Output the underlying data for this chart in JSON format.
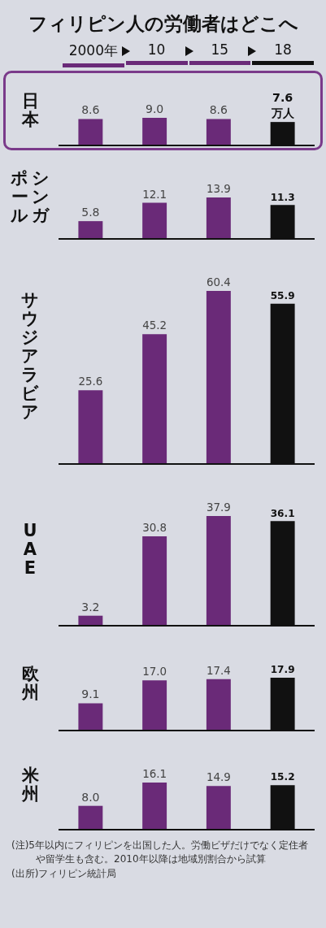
{
  "chart_data": [
    {
      "type": "bar",
      "title": "フィリピン人の労働者はどこへ",
      "ylabel": "日本",
      "categories": [
        "2000年",
        "10",
        "15",
        "18"
      ],
      "values": [
        8.6,
        9.0,
        8.6,
        7.6
      ],
      "colors": [
        "#6a2a78",
        "#6a2a78",
        "#6a2a78",
        "#111111"
      ],
      "value_labels": [
        "8.6",
        "9.0",
        "8.6",
        "7.6 万人"
      ],
      "tick_labels": false
    },
    {
      "type": "bar",
      "ylabel": "シンガポール",
      "categories": [
        null,
        null,
        null,
        null
      ],
      "values": [
        5.8,
        12.1,
        13.9,
        11.3
      ],
      "colors": [
        "#6a2a78",
        "#6a2a78",
        "#6a2a78",
        "#111111"
      ],
      "value_labels": [
        "5.8",
        "12.1",
        "13.9",
        "11.3"
      ],
      "tick_labels": false
    },
    {
      "type": "bar",
      "ylabel": "サウジアラビア",
      "categories": [
        null,
        null,
        null,
        null
      ],
      "values": [
        25.6,
        45.2,
        60.4,
        55.9
      ],
      "colors": [
        "#6a2a78",
        "#6a2a78",
        "#6a2a78",
        "#111111"
      ],
      "value_labels": [
        "25.6",
        "45.2",
        "60.4",
        "55.9"
      ],
      "tick_labels": false
    },
    {
      "type": "bar",
      "ylabel": "UAE",
      "categories": [
        null,
        null,
        null,
        null
      ],
      "values": [
        3.2,
        30.8,
        37.9,
        36.1
      ],
      "colors": [
        "#6a2a78",
        "#6a2a78",
        "#6a2a78",
        "#111111"
      ],
      "value_labels": [
        "3.2",
        "30.8",
        "37.9",
        "36.1"
      ],
      "tick_labels": false
    },
    {
      "type": "bar",
      "ylabel": "欧州",
      "categories": [
        null,
        null,
        null,
        null
      ],
      "values": [
        9.1,
        17.0,
        17.4,
        17.9
      ],
      "colors": [
        "#6a2a78",
        "#6a2a78",
        "#6a2a78",
        "#111111"
      ],
      "value_labels": [
        "9.1",
        "17.0",
        "17.4",
        "17.9"
      ],
      "tick_labels": false
    },
    {
      "type": "bar",
      "ylabel": "米州",
      "categories": [
        null,
        null,
        null,
        null
      ],
      "values": [
        8.0,
        16.1,
        14.9,
        15.2
      ],
      "colors": [
        "#6a2a78",
        "#6a2a78",
        "#6a2a78",
        "#111111"
      ],
      "value_labels": [
        "8.0",
        "16.1",
        "14.9",
        "15.2"
      ],
      "tick_labels": false,
      "annotations": [
        "(注)5年以内にフィリピンを出国した人。労働ビザだけでなく定住者や留学生も含む。2010年以降は地域別割合から試算",
        "(出所)フィリピン統計局"
      ]
    }
  ]
}
